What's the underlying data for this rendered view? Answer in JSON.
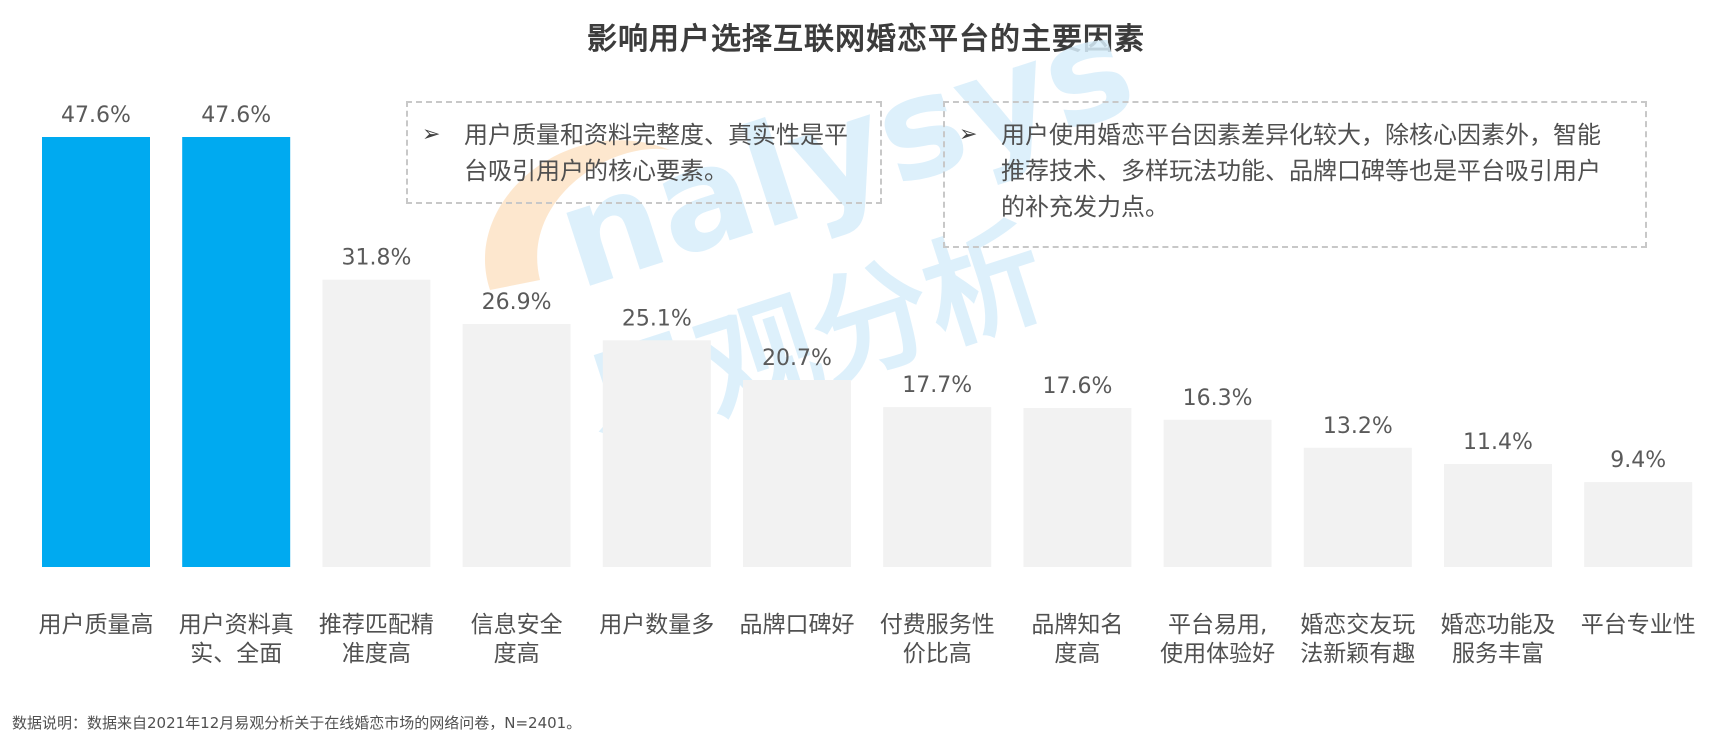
{
  "title": "影响用户选择互联网婚恋平台的主要因素",
  "notes": [
    {
      "arrow": "➢",
      "text": "用户质量和资料完整度、真实性是平台吸引用户的核心要素。"
    },
    {
      "arrow": "➢",
      "text": "用户使用婚恋平台因素差异化较大，除核心因素外，智能推荐技术、多样玩法功能、品牌口碑等也是平台吸引用户的补充发力点。"
    }
  ],
  "watermark": {
    "latin": "nalysys",
    "cn": "易观分析"
  },
  "footnote": "数据说明：数据来自2021年12月易观分析关于在线婚恋市场的网络问卷，N=2401。",
  "colors": {
    "highlight": "#00aaf0",
    "muted": "#f2f2f2",
    "label": "#505050"
  },
  "chart_data": {
    "type": "bar",
    "title": "影响用户选择互联网婚恋平台的主要因素",
    "unit": "%",
    "categories": [
      [
        "用户质量高"
      ],
      [
        "用户资料真",
        "实、全面"
      ],
      [
        "推荐匹配精",
        "准度高"
      ],
      [
        "信息安全",
        "度高"
      ],
      [
        "用户数量多"
      ],
      [
        "品牌口碑好"
      ],
      [
        "付费服务性",
        "价比高"
      ],
      [
        "品牌知名",
        "度高"
      ],
      [
        "平台易用,",
        "使用体验好"
      ],
      [
        "婚恋交友玩",
        "法新颖有趣"
      ],
      [
        "婚恋功能及",
        "服务丰富"
      ],
      [
        "平台专业性"
      ]
    ],
    "values": [
      47.6,
      47.6,
      31.8,
      26.9,
      25.1,
      20.7,
      17.7,
      17.6,
      16.3,
      13.2,
      11.4,
      9.4
    ],
    "value_labels": [
      "47.6%",
      "47.6%",
      "31.8%",
      "26.9%",
      "25.1%",
      "20.7%",
      "17.7%",
      "17.6%",
      "16.3%",
      "13.2%",
      "11.4%",
      "9.4%"
    ],
    "highlighted": [
      true,
      true,
      false,
      false,
      false,
      false,
      false,
      false,
      false,
      false,
      false,
      false
    ],
    "ylim": [
      0,
      47.6
    ],
    "grid": false,
    "legend": "none"
  }
}
